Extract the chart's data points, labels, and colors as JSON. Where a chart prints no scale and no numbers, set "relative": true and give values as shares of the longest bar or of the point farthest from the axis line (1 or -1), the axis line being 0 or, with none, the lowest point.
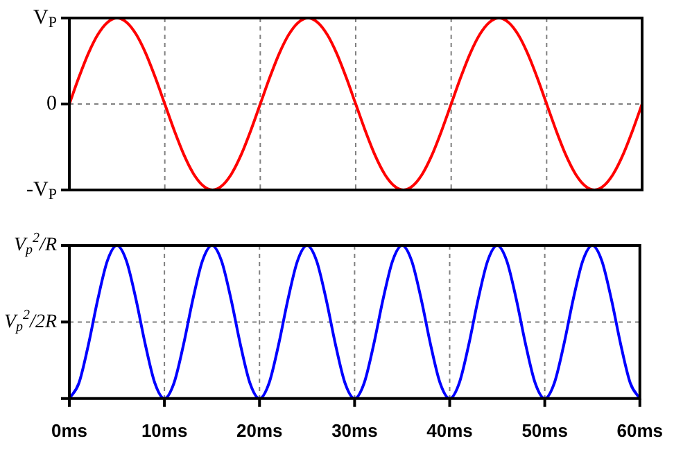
{
  "chart_data": [
    {
      "type": "line",
      "relative": true,
      "xlim": [
        0,
        60
      ],
      "xticks": [
        {
          "value": 0,
          "label": null
        },
        {
          "value": 10,
          "label": null
        },
        {
          "value": 20,
          "label": null
        },
        {
          "value": 30,
          "label": null
        },
        {
          "value": 40,
          "label": null
        },
        {
          "value": 50,
          "label": null
        },
        {
          "value": 60,
          "label": null
        }
      ],
      "tick_labels": false,
      "grid": "x",
      "ref_lines": [
        {
          "axis": "y",
          "value": 1,
          "label": "V$_{P}$"
        },
        {
          "axis": "y",
          "value": 0,
          "label": "0",
          "color": "#808080",
          "line_style": "dashed"
        },
        {
          "axis": "y",
          "value": -1,
          "label": "-V$_{P}$"
        }
      ],
      "x": [
        0,
        1,
        2,
        3,
        4,
        5,
        6,
        7,
        8,
        9,
        10,
        11,
        12,
        13,
        14,
        15,
        16,
        17,
        18,
        19,
        20,
        21,
        22,
        23,
        24,
        25,
        26,
        27,
        28,
        29,
        30,
        31,
        32,
        33,
        34,
        35,
        36,
        37,
        38,
        39,
        40,
        41,
        42,
        43,
        44,
        45,
        46,
        47,
        48,
        49,
        50,
        51,
        52,
        53,
        54,
        55,
        56,
        57,
        58,
        59,
        60
      ],
      "series": [
        {
          "color": "#ff0000",
          "values": [
            0,
            0.31,
            0.59,
            0.81,
            0.95,
            1,
            0.95,
            0.81,
            0.59,
            0.31,
            0,
            -0.31,
            -0.59,
            -0.81,
            -0.95,
            -1,
            -0.95,
            -0.81,
            -0.59,
            -0.31,
            0,
            0.31,
            0.59,
            0.81,
            0.95,
            1,
            0.95,
            0.81,
            0.59,
            0.31,
            0,
            -0.31,
            -0.59,
            -0.81,
            -0.95,
            -1,
            -0.95,
            -0.81,
            -0.59,
            -0.31,
            0,
            0.31,
            0.59,
            0.81,
            0.95,
            1,
            0.95,
            0.81,
            0.59,
            0.31,
            0,
            -0.31,
            -0.59,
            -0.81,
            -0.95,
            -1,
            -0.95,
            -0.81,
            -0.59,
            -0.31,
            0
          ]
        }
      ]
    },
    {
      "type": "line",
      "relative": true,
      "xlim": [
        0,
        60
      ],
      "xticks": [
        {
          "value": 0,
          "label": "0ms"
        },
        {
          "value": 10,
          "label": "10ms"
        },
        {
          "value": 20,
          "label": "20ms"
        },
        {
          "value": 30,
          "label": "30ms"
        },
        {
          "value": 40,
          "label": "40ms"
        },
        {
          "value": 50,
          "label": "50ms"
        },
        {
          "value": 60,
          "label": "60ms"
        }
      ],
      "tick_labels": "x",
      "grid": "x",
      "ref_lines": [
        {
          "axis": "y",
          "value": 1,
          "label": "V$_{p}$$^{2}$/R"
        },
        {
          "axis": "y",
          "value": 0.5,
          "label": "V$_{p}$$^{2}$/2R",
          "color": "#808080",
          "line_style": "dashed"
        }
      ],
      "x": [
        0,
        1,
        2,
        3,
        4,
        5,
        6,
        7,
        8,
        9,
        10,
        11,
        12,
        13,
        14,
        15,
        16,
        17,
        18,
        19,
        20,
        21,
        22,
        23,
        24,
        25,
        26,
        27,
        28,
        29,
        30,
        31,
        32,
        33,
        34,
        35,
        36,
        37,
        38,
        39,
        40,
        41,
        42,
        43,
        44,
        45,
        46,
        47,
        48,
        49,
        50,
        51,
        52,
        53,
        54,
        55,
        56,
        57,
        58,
        59,
        60
      ],
      "series": [
        {
          "color": "#0000ff",
          "values": [
            0,
            0.1,
            0.35,
            0.65,
            0.9,
            1,
            0.9,
            0.65,
            0.35,
            0.1,
            0,
            0.1,
            0.35,
            0.65,
            0.9,
            1,
            0.9,
            0.65,
            0.35,
            0.1,
            0,
            0.1,
            0.35,
            0.65,
            0.9,
            1,
            0.9,
            0.65,
            0.35,
            0.1,
            0,
            0.1,
            0.35,
            0.65,
            0.9,
            1,
            0.9,
            0.65,
            0.35,
            0.1,
            0,
            0.1,
            0.35,
            0.65,
            0.9,
            1,
            0.9,
            0.65,
            0.35,
            0.1,
            0,
            0.1,
            0.35,
            0.65,
            0.9,
            1,
            0.9,
            0.65,
            0.35,
            0.1,
            0
          ]
        }
      ]
    }
  ]
}
